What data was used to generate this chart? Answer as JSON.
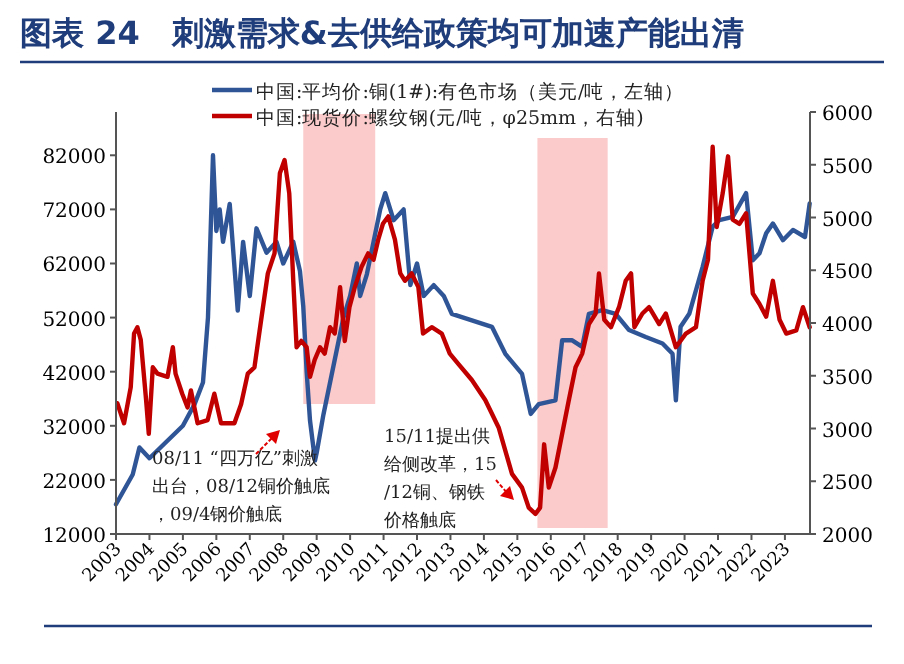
{
  "chart_data": {
    "type": "line",
    "title": "图表 24　刺激需求&去供给政策均可加速产能出清",
    "x": [
      2003.0,
      2003.5,
      2003.7,
      2004.0,
      2004.5,
      2005.0,
      2005.35,
      2005.6,
      2005.75,
      2005.9,
      2006.0,
      2006.1,
      2006.2,
      2006.4,
      2006.64,
      2006.8,
      2007.0,
      2007.2,
      2007.5,
      2007.8,
      2008.0,
      2008.3,
      2008.5,
      2008.6,
      2008.7,
      2008.8,
      2008.95,
      2009.0,
      2009.2,
      2009.4,
      2009.6,
      2009.8,
      2010.0,
      2010.2,
      2010.3,
      2010.5,
      2010.7,
      2010.9,
      2011.05,
      2011.3,
      2011.6,
      2011.8,
      2012.0,
      2012.2,
      2012.5,
      2012.8,
      2013.04,
      2013.64,
      2014.24,
      2014.64,
      2015.14,
      2015.4,
      2015.64,
      2016.14,
      2016.34,
      2016.64,
      2016.94,
      2017.14,
      2017.54,
      2017.94,
      2018.34,
      2018.84,
      2019.34,
      2019.64,
      2019.74,
      2019.88,
      2020.14,
      2020.54,
      2020.84,
      2021.04,
      2021.44,
      2021.84,
      2022.04,
      2022.24,
      2022.44,
      2022.64,
      2022.94,
      2023.24,
      2023.6,
      2023.74
    ],
    "series": [
      {
        "name": "中国:平均价:铜(1#):有色市场（美元/吨，左轴）",
        "color": "#2f5597",
        "values": [
          17500,
          23000,
          28000,
          26000,
          29000,
          32000,
          36000,
          40000,
          52000,
          82000,
          68000,
          72000,
          66000,
          73000,
          53300,
          66000,
          56000,
          68500,
          64000,
          66000,
          62000,
          66000,
          60600,
          54000,
          42000,
          33000,
          25600,
          27000,
          34000,
          40000,
          46000,
          52000,
          56000,
          62000,
          56000,
          60000,
          66000,
          72000,
          75000,
          70000,
          72000,
          58000,
          62000,
          56000,
          58000,
          56000,
          52700,
          51500,
          50300,
          45300,
          41600,
          34200,
          36000,
          36700,
          47800,
          47800,
          46600,
          52700,
          53400,
          52700,
          49700,
          48400,
          47200,
          45300,
          36700,
          50300,
          52700,
          61400,
          68800,
          70000,
          70600,
          75000,
          62600,
          63900,
          67600,
          69400,
          66300,
          68200,
          66900,
          73100
        ]
      },
      {
        "name": "中国:现货价:螺纹钢(元/吨，φ25mm，右轴)",
        "color": "#c00000",
        "axis": "y2",
        "x": [
          2003.04,
          2003.24,
          2003.44,
          2003.54,
          2003.64,
          2003.74,
          2003.9,
          2003.98,
          2004.1,
          2004.24,
          2004.54,
          2004.7,
          2004.78,
          2004.98,
          2005.14,
          2005.24,
          2005.44,
          2005.74,
          2005.94,
          2006.14,
          2006.54,
          2006.74,
          2006.94,
          2007.14,
          2007.34,
          2007.54,
          2007.74,
          2007.9,
          2008.04,
          2008.18,
          2008.3,
          2008.4,
          2008.54,
          2008.7,
          2008.8,
          2008.94,
          2009.1,
          2009.24,
          2009.4,
          2009.54,
          2009.7,
          2009.84,
          2009.98,
          2010.14,
          2010.34,
          2010.54,
          2010.7,
          2010.84,
          2010.98,
          2011.14,
          2011.34,
          2011.5,
          2011.64,
          2011.84,
          2012.04,
          2012.18,
          2012.44,
          2012.74,
          2012.98,
          2013.24,
          2013.64,
          2014.04,
          2014.44,
          2014.84,
          2015.14,
          2015.34,
          2015.54,
          2015.68,
          2015.8,
          2015.94,
          2016.14,
          2016.34,
          2016.54,
          2016.74,
          2016.94,
          2017.14,
          2017.34,
          2017.44,
          2017.6,
          2017.8,
          2018.04,
          2018.24,
          2018.4,
          2018.5,
          2018.74,
          2018.94,
          2019.24,
          2019.44,
          2019.74,
          2020.04,
          2020.34,
          2020.54,
          2020.7,
          2020.84,
          2020.96,
          2021.14,
          2021.3,
          2021.44,
          2021.64,
          2021.84,
          2022.04,
          2022.24,
          2022.44,
          2022.64,
          2022.84,
          2023.04,
          2023.34,
          2023.54,
          2023.74
        ],
        "values": [
          3240,
          3050,
          3390,
          3900,
          3960,
          3840,
          3270,
          2950,
          3580,
          3520,
          3490,
          3770,
          3520,
          3330,
          3200,
          3360,
          3050,
          3080,
          3330,
          3050,
          3050,
          3230,
          3520,
          3580,
          4030,
          4470,
          4660,
          5420,
          5545,
          5230,
          4400,
          3770,
          3830,
          3770,
          3490,
          3650,
          3770,
          3710,
          3960,
          3900,
          4340,
          3830,
          4150,
          4340,
          4530,
          4660,
          4600,
          4790,
          4940,
          5010,
          4790,
          4470,
          4400,
          4470,
          4340,
          3900,
          3960,
          3900,
          3710,
          3610,
          3460,
          3270,
          3010,
          2570,
          2440,
          2250,
          2190,
          2250,
          2850,
          2440,
          2630,
          2950,
          3270,
          3580,
          3710,
          3990,
          4090,
          4470,
          4030,
          3960,
          4150,
          4400,
          4470,
          3960,
          4090,
          4150,
          3990,
          4090,
          3770,
          3900,
          3960,
          4400,
          4600,
          5670,
          4910,
          5230,
          5580,
          4980,
          4940,
          5040,
          4280,
          4180,
          4060,
          4400,
          4030,
          3900,
          3930,
          4150,
          3960
        ]
      }
    ],
    "xlim": [
      2003,
      2023.75
    ],
    "xticks": [
      2003,
      2004,
      2005,
      2006,
      2007,
      2008,
      2009,
      2010,
      2011,
      2012,
      2013,
      2014,
      2015,
      2016,
      2017,
      2018,
      2019,
      2020,
      2021,
      2022,
      2023
    ],
    "ylim": [
      12000,
      90000
    ],
    "yticks": [
      12000,
      22000,
      32000,
      42000,
      52000,
      62000,
      72000,
      82000
    ],
    "y2lim": [
      2000,
      6000
    ],
    "y2ticks": [
      2000,
      2500,
      3000,
      3500,
      4000,
      4500,
      5000,
      5500,
      6000
    ],
    "bands": [
      {
        "axis": "x",
        "from": 2008.6,
        "to": 2010.75,
        "color": "#fbcaca"
      },
      {
        "axis": "x",
        "from": 2015.6,
        "to": 2017.7,
        "color": "#fbcaca"
      }
    ],
    "annotations": [
      "08/11 “四万亿”刺激出台，08/12铜价触底，09/4钢价触底",
      "15/11提出供给侧改革，15/12铜、钢铁价格触底"
    ],
    "legend": "top",
    "grid": false
  }
}
